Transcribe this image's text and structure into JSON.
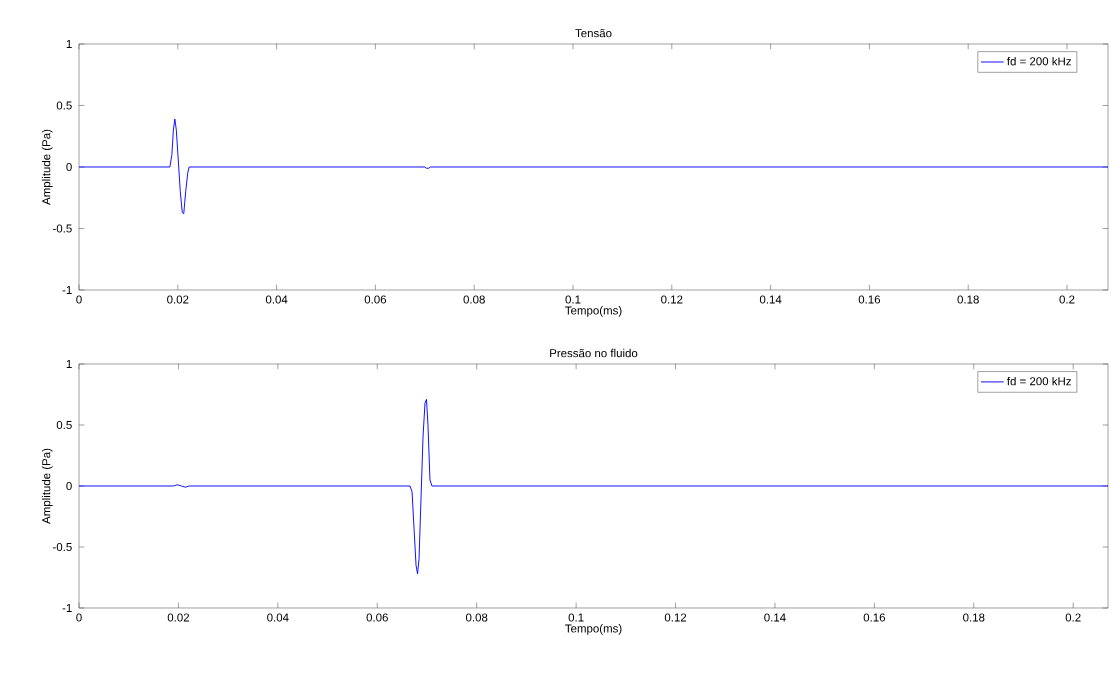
{
  "chart_data": [
    {
      "type": "line",
      "title": "Tensão",
      "xlabel": "Tempo(ms)",
      "ylabel": "Amplitude (Pa)",
      "x": [
        0,
        0.0184,
        0.0188,
        0.0191,
        0.0194,
        0.0197,
        0.0201,
        0.0205,
        0.0209,
        0.0212,
        0.0216,
        0.022,
        0.0223,
        0.07,
        0.0703,
        0.0708,
        0.0711,
        0.2083
      ],
      "series": [
        {
          "name": "fd = 200 kHz",
          "color": "#0000ff",
          "values": [
            0,
            0,
            0.1,
            0.3,
            0.39,
            0.3,
            0.05,
            -0.2,
            -0.37,
            -0.38,
            -0.2,
            -0.05,
            0,
            0,
            -0.01,
            -0.01,
            0,
            0
          ]
        }
      ],
      "xlim": [
        0,
        0.2083
      ],
      "ylim": [
        -1,
        1
      ],
      "xticks": [
        0,
        0.02,
        0.04,
        0.06,
        0.08,
        0.1,
        0.12,
        0.14,
        0.16,
        0.18,
        0.2
      ],
      "yticks": [
        -1,
        -0.5,
        0,
        0.5,
        1
      ],
      "legend": "top right",
      "marker": "none"
    },
    {
      "type": "line",
      "title": "Pressão no fluido",
      "xlabel": "Tempo(ms)",
      "ylabel": "Amplitude (Pa)",
      "x": [
        0,
        0.019,
        0.0198,
        0.0206,
        0.0214,
        0.0222,
        0.0666,
        0.067,
        0.0674,
        0.0678,
        0.0681,
        0.0684,
        0.0688,
        0.0692,
        0.0696,
        0.0699,
        0.0702,
        0.0706,
        0.071,
        0.207
      ],
      "series": [
        {
          "name": "fd = 200 kHz",
          "color": "#0000ff",
          "values": [
            0,
            0,
            0.01,
            0,
            -0.01,
            0,
            0,
            -0.05,
            -0.35,
            -0.65,
            -0.72,
            -0.6,
            -0.1,
            0.4,
            0.68,
            0.71,
            0.5,
            0.05,
            0,
            0
          ]
        }
      ],
      "xlim": [
        0,
        0.207
      ],
      "ylim": [
        -1,
        1
      ],
      "xticks": [
        0,
        0.02,
        0.04,
        0.06,
        0.08,
        0.1,
        0.12,
        0.14,
        0.16,
        0.18,
        0.2
      ],
      "yticks": [
        -1,
        -0.5,
        0,
        0.5,
        1
      ],
      "legend": "top right",
      "marker": "none"
    }
  ]
}
